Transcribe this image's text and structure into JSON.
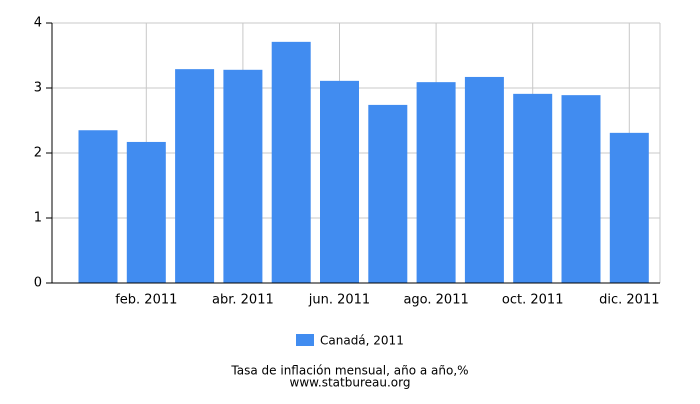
{
  "chart_data": {
    "type": "bar",
    "title": "Tasa de inflación mensual, año a año,%",
    "source": "www.statbureau.org",
    "categories": [
      null,
      "feb. 2011",
      null,
      "abr. 2011",
      null,
      "jun. 2011",
      null,
      "ago. 2011",
      null,
      "oct. 2011",
      null,
      "dic. 2011"
    ],
    "series": [
      {
        "name": "Canadá, 2011",
        "color": "#418cf0",
        "values": [
          2.35,
          2.17,
          3.29,
          3.28,
          3.71,
          3.11,
          2.74,
          3.09,
          3.17,
          2.91,
          2.89,
          2.31
        ]
      }
    ],
    "ylim": [
      0,
      4
    ],
    "yticks": [
      0,
      1,
      2,
      3,
      4
    ],
    "grid": true
  }
}
